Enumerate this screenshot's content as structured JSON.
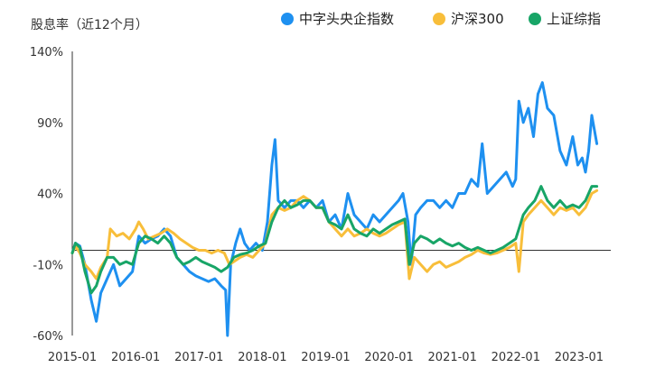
{
  "chart_data": {
    "type": "line",
    "title": "股息率（近12个月）",
    "xlabel": "",
    "ylabel": "股息率（近12个月）",
    "x_ticks": [
      "2015-01",
      "2016-01",
      "2017-01",
      "2018-01",
      "2019-01",
      "2020-01",
      "2021-01",
      "2022-01",
      "2023-01"
    ],
    "y_ticks": [
      "140%",
      "90%",
      "40%",
      "-10%",
      "-60%"
    ],
    "ylim": [
      -60,
      140
    ],
    "xlim": [
      2015.0,
      2023.5
    ],
    "reference_line_y": 0,
    "legend_position": "top-right",
    "series": [
      {
        "name": "中字头央企指数",
        "color": "#1E90F0",
        "points": [
          [
            2015.0,
            -2
          ],
          [
            2015.05,
            5
          ],
          [
            2015.12,
            3
          ],
          [
            2015.2,
            -10
          ],
          [
            2015.3,
            -35
          ],
          [
            2015.38,
            -50
          ],
          [
            2015.45,
            -30
          ],
          [
            2015.55,
            -20
          ],
          [
            2015.65,
            -10
          ],
          [
            2015.75,
            -25
          ],
          [
            2015.85,
            -20
          ],
          [
            2015.95,
            -15
          ],
          [
            2016.05,
            10
          ],
          [
            2016.15,
            5
          ],
          [
            2016.25,
            8
          ],
          [
            2016.35,
            10
          ],
          [
            2016.45,
            15
          ],
          [
            2016.55,
            10
          ],
          [
            2016.65,
            -5
          ],
          [
            2016.75,
            -10
          ],
          [
            2016.85,
            -15
          ],
          [
            2016.95,
            -18
          ],
          [
            2017.05,
            -20
          ],
          [
            2017.15,
            -22
          ],
          [
            2017.25,
            -20
          ],
          [
            2017.35,
            -25
          ],
          [
            2017.42,
            -28
          ],
          [
            2017.45,
            -60
          ],
          [
            2017.5,
            -10
          ],
          [
            2017.58,
            5
          ],
          [
            2017.65,
            15
          ],
          [
            2017.72,
            5
          ],
          [
            2017.8,
            0
          ],
          [
            2017.9,
            5
          ],
          [
            2018.0,
            0
          ],
          [
            2018.08,
            20
          ],
          [
            2018.15,
            60
          ],
          [
            2018.2,
            78
          ],
          [
            2018.25,
            35
          ],
          [
            2018.35,
            30
          ],
          [
            2018.45,
            35
          ],
          [
            2018.55,
            35
          ],
          [
            2018.65,
            30
          ],
          [
            2018.75,
            35
          ],
          [
            2018.85,
            30
          ],
          [
            2018.95,
            35
          ],
          [
            2019.05,
            20
          ],
          [
            2019.15,
            25
          ],
          [
            2019.25,
            15
          ],
          [
            2019.35,
            40
          ],
          [
            2019.45,
            25
          ],
          [
            2019.55,
            20
          ],
          [
            2019.65,
            15
          ],
          [
            2019.75,
            25
          ],
          [
            2019.85,
            20
          ],
          [
            2019.95,
            25
          ],
          [
            2020.05,
            30
          ],
          [
            2020.15,
            35
          ],
          [
            2020.22,
            40
          ],
          [
            2020.3,
            20
          ],
          [
            2020.35,
            -10
          ],
          [
            2020.42,
            25
          ],
          [
            2020.5,
            30
          ],
          [
            2020.6,
            35
          ],
          [
            2020.7,
            35
          ],
          [
            2020.8,
            30
          ],
          [
            2020.9,
            35
          ],
          [
            2021.0,
            30
          ],
          [
            2021.1,
            40
          ],
          [
            2021.2,
            40
          ],
          [
            2021.3,
            50
          ],
          [
            2021.4,
            45
          ],
          [
            2021.47,
            75
          ],
          [
            2021.55,
            40
          ],
          [
            2021.65,
            45
          ],
          [
            2021.75,
            50
          ],
          [
            2021.85,
            55
          ],
          [
            2021.95,
            45
          ],
          [
            2022.0,
            50
          ],
          [
            2022.05,
            105
          ],
          [
            2022.12,
            90
          ],
          [
            2022.2,
            100
          ],
          [
            2022.28,
            80
          ],
          [
            2022.35,
            110
          ],
          [
            2022.42,
            118
          ],
          [
            2022.5,
            100
          ],
          [
            2022.6,
            95
          ],
          [
            2022.7,
            70
          ],
          [
            2022.8,
            60
          ],
          [
            2022.9,
            80
          ],
          [
            2022.98,
            60
          ],
          [
            2023.05,
            65
          ],
          [
            2023.1,
            55
          ],
          [
            2023.15,
            70
          ],
          [
            2023.2,
            95
          ],
          [
            2023.28,
            75
          ]
        ]
      },
      {
        "name": "沪深300",
        "color": "#F8BE3A",
        "points": [
          [
            2015.0,
            -2
          ],
          [
            2015.05,
            3
          ],
          [
            2015.12,
            -2
          ],
          [
            2015.2,
            -10
          ],
          [
            2015.3,
            -15
          ],
          [
            2015.38,
            -20
          ],
          [
            2015.45,
            -12
          ],
          [
            2015.55,
            -5
          ],
          [
            2015.6,
            15
          ],
          [
            2015.7,
            10
          ],
          [
            2015.8,
            12
          ],
          [
            2015.9,
            8
          ],
          [
            2016.0,
            15
          ],
          [
            2016.05,
            20
          ],
          [
            2016.12,
            15
          ],
          [
            2016.2,
            8
          ],
          [
            2016.3,
            10
          ],
          [
            2016.4,
            12
          ],
          [
            2016.5,
            15
          ],
          [
            2016.6,
            12
          ],
          [
            2016.7,
            8
          ],
          [
            2016.8,
            5
          ],
          [
            2016.9,
            2
          ],
          [
            2017.0,
            0
          ],
          [
            2017.1,
            0
          ],
          [
            2017.2,
            -2
          ],
          [
            2017.3,
            0
          ],
          [
            2017.4,
            -2
          ],
          [
            2017.48,
            -10
          ],
          [
            2017.55,
            -8
          ],
          [
            2017.65,
            -5
          ],
          [
            2017.75,
            -3
          ],
          [
            2017.85,
            -5
          ],
          [
            2017.95,
            0
          ],
          [
            2018.05,
            5
          ],
          [
            2018.15,
            25
          ],
          [
            2018.25,
            30
          ],
          [
            2018.35,
            28
          ],
          [
            2018.45,
            30
          ],
          [
            2018.55,
            35
          ],
          [
            2018.65,
            38
          ],
          [
            2018.75,
            35
          ],
          [
            2018.85,
            30
          ],
          [
            2018.95,
            30
          ],
          [
            2019.05,
            20
          ],
          [
            2019.15,
            15
          ],
          [
            2019.25,
            10
          ],
          [
            2019.35,
            15
          ],
          [
            2019.45,
            10
          ],
          [
            2019.55,
            12
          ],
          [
            2019.65,
            15
          ],
          [
            2019.75,
            12
          ],
          [
            2019.85,
            10
          ],
          [
            2019.95,
            12
          ],
          [
            2020.05,
            15
          ],
          [
            2020.15,
            18
          ],
          [
            2020.25,
            20
          ],
          [
            2020.32,
            -20
          ],
          [
            2020.4,
            -5
          ],
          [
            2020.5,
            -10
          ],
          [
            2020.6,
            -15
          ],
          [
            2020.7,
            -10
          ],
          [
            2020.8,
            -8
          ],
          [
            2020.9,
            -12
          ],
          [
            2021.0,
            -10
          ],
          [
            2021.1,
            -8
          ],
          [
            2021.2,
            -5
          ],
          [
            2021.3,
            -3
          ],
          [
            2021.4,
            0
          ],
          [
            2021.5,
            -2
          ],
          [
            2021.6,
            -3
          ],
          [
            2021.7,
            -2
          ],
          [
            2021.8,
            0
          ],
          [
            2021.9,
            2
          ],
          [
            2022.0,
            5
          ],
          [
            2022.05,
            -15
          ],
          [
            2022.12,
            20
          ],
          [
            2022.2,
            25
          ],
          [
            2022.3,
            30
          ],
          [
            2022.4,
            35
          ],
          [
            2022.5,
            30
          ],
          [
            2022.6,
            25
          ],
          [
            2022.7,
            30
          ],
          [
            2022.8,
            28
          ],
          [
            2022.9,
            30
          ],
          [
            2023.0,
            25
          ],
          [
            2023.1,
            30
          ],
          [
            2023.2,
            40
          ],
          [
            2023.28,
            42
          ]
        ]
      },
      {
        "name": "上证综指",
        "color": "#18A567",
        "points": [
          [
            2015.0,
            -2
          ],
          [
            2015.05,
            5
          ],
          [
            2015.12,
            2
          ],
          [
            2015.2,
            -15
          ],
          [
            2015.3,
            -30
          ],
          [
            2015.38,
            -25
          ],
          [
            2015.45,
            -15
          ],
          [
            2015.55,
            -5
          ],
          [
            2015.65,
            -5
          ],
          [
            2015.75,
            -10
          ],
          [
            2015.85,
            -8
          ],
          [
            2015.95,
            -10
          ],
          [
            2016.05,
            5
          ],
          [
            2016.15,
            10
          ],
          [
            2016.25,
            8
          ],
          [
            2016.35,
            5
          ],
          [
            2016.45,
            10
          ],
          [
            2016.55,
            5
          ],
          [
            2016.65,
            -5
          ],
          [
            2016.75,
            -10
          ],
          [
            2016.85,
            -8
          ],
          [
            2016.95,
            -5
          ],
          [
            2017.05,
            -8
          ],
          [
            2017.15,
            -10
          ],
          [
            2017.25,
            -12
          ],
          [
            2017.35,
            -15
          ],
          [
            2017.45,
            -12
          ],
          [
            2017.55,
            -5
          ],
          [
            2017.65,
            -3
          ],
          [
            2017.75,
            -2
          ],
          [
            2017.85,
            0
          ],
          [
            2017.95,
            3
          ],
          [
            2018.05,
            5
          ],
          [
            2018.15,
            20
          ],
          [
            2018.25,
            30
          ],
          [
            2018.35,
            35
          ],
          [
            2018.45,
            30
          ],
          [
            2018.55,
            32
          ],
          [
            2018.65,
            35
          ],
          [
            2018.75,
            35
          ],
          [
            2018.85,
            30
          ],
          [
            2018.95,
            30
          ],
          [
            2019.05,
            20
          ],
          [
            2019.15,
            18
          ],
          [
            2019.25,
            15
          ],
          [
            2019.35,
            25
          ],
          [
            2019.45,
            15
          ],
          [
            2019.55,
            12
          ],
          [
            2019.65,
            10
          ],
          [
            2019.75,
            15
          ],
          [
            2019.85,
            12
          ],
          [
            2019.95,
            15
          ],
          [
            2020.05,
            18
          ],
          [
            2020.15,
            20
          ],
          [
            2020.25,
            22
          ],
          [
            2020.32,
            -10
          ],
          [
            2020.4,
            5
          ],
          [
            2020.5,
            10
          ],
          [
            2020.6,
            8
          ],
          [
            2020.7,
            5
          ],
          [
            2020.8,
            8
          ],
          [
            2020.9,
            5
          ],
          [
            2021.0,
            3
          ],
          [
            2021.1,
            5
          ],
          [
            2021.2,
            2
          ],
          [
            2021.3,
            0
          ],
          [
            2021.4,
            2
          ],
          [
            2021.5,
            0
          ],
          [
            2021.6,
            -2
          ],
          [
            2021.7,
            0
          ],
          [
            2021.8,
            2
          ],
          [
            2021.9,
            5
          ],
          [
            2022.0,
            8
          ],
          [
            2022.05,
            15
          ],
          [
            2022.12,
            25
          ],
          [
            2022.2,
            30
          ],
          [
            2022.3,
            35
          ],
          [
            2022.4,
            45
          ],
          [
            2022.5,
            35
          ],
          [
            2022.6,
            30
          ],
          [
            2022.7,
            35
          ],
          [
            2022.8,
            30
          ],
          [
            2022.9,
            32
          ],
          [
            2023.0,
            30
          ],
          [
            2023.1,
            35
          ],
          [
            2023.2,
            45
          ],
          [
            2023.28,
            45
          ]
        ]
      }
    ]
  }
}
